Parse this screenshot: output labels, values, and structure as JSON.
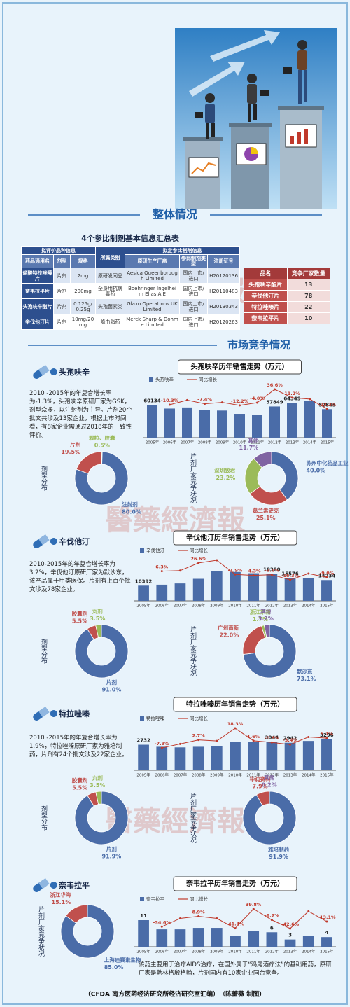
{
  "header": {
    "section1": "整体情况",
    "section2": "市场竞争情况"
  },
  "watermark": "醫藥經濟報",
  "table1": {
    "title": "4个参比制剂基本信息汇总表",
    "group_headers": [
      "拟评价品种信息",
      "拟定参比制剂信息"
    ],
    "columns": [
      "药品通用名",
      "剂型",
      "规格",
      "所属类别",
      "原研生产厂商",
      "参比制剂类型",
      "注册证号"
    ],
    "rows": [
      [
        "盐酸特拉唑嗪片",
        "片剂",
        "2mg",
        "原研发同品",
        "Aesica Queenborough Limited",
        "国内上市/进口",
        "H20120136"
      ],
      [
        "奈韦拉平片",
        "片剂",
        "200mg",
        "全身用抗病毒药",
        "Boehringer Ingelheim Ellas A.E",
        "国内上市/进口",
        "H20110483"
      ],
      [
        "头孢呋辛酯片",
        "片剂",
        "0.125g/0.25g",
        "头孢菌素类",
        "Glaxo Operations UK Limited",
        "国内上市/进口",
        "H20130343"
      ],
      [
        "辛伐他汀片",
        "片剂",
        "10mg/20mg",
        "降血脂药",
        "Merck Sharp & Dohme Limited",
        "国内上市/进口",
        "H20120263"
      ]
    ]
  },
  "table2": {
    "columns": [
      "品名",
      "竞争厂家数量"
    ],
    "rows": [
      [
        "头孢呋辛酯片",
        13
      ],
      [
        "辛伐他汀片",
        78
      ],
      [
        "特拉唑嗪片",
        22
      ],
      [
        "奈韦拉平片",
        10
      ]
    ]
  },
  "drugs": [
    {
      "name": "头孢呋辛",
      "description": "2010 -2015年的年复合增长率为-1.3%，头孢呋辛原研厂家为GSK，剂型众多，以注射剂为主导。片剂20个批文共涉及13家企业，根据上市时间看，有8家企业需通过2018年的一致性评价。"
    },
    {
      "name": "辛伐他汀",
      "description": "2010-2015年的年复合增长率为3.2%，辛伐他汀原研厂家为默沙东，该产品属于甲类医保。片剂有上百个批文涉及78家企业。"
    },
    {
      "name": "特拉唑嗪",
      "description": "2010 -2015年的年复合增长率为1.9%，特拉唑嗪原研厂家为雅培制药，片剂有24个批文涉及22家企业。"
    },
    {
      "name": "奈韦拉平",
      "description": "该药主要用于治疗AIDS治疗，在国外属于“鸡尾酒疗法”的基础用药，原研厂家是勃林格殷格翰，片剂国内有10家企业同台竞争。"
    }
  ],
  "chart_data": [
    {
      "type": "combo",
      "title": "头孢呋辛历年销售走势（万元）",
      "categories": [
        "2005年",
        "2006年",
        "2007年",
        "2008年",
        "2009年",
        "2010年",
        "2011年",
        "2012年",
        "2013年",
        "2014年",
        "2015年"
      ],
      "series": [
        {
          "name": "头孢呋辛",
          "color": "#4a6ca8",
          "values": [
            60134,
            53940,
            56000,
            51856,
            50245,
            44115,
            42350,
            57849,
            64349,
            68809,
            52845
          ],
          "value_labels": [
            "60134",
            null,
            null,
            null,
            null,
            null,
            null,
            "57849",
            "64349",
            null,
            "52845"
          ]
        },
        {
          "name": "同比增长",
          "color": "#c0392b",
          "axis": "y2",
          "values": [
            null,
            -10.3,
            3.8,
            -7.4,
            -3.1,
            -12.2,
            -4.0,
            36.6,
            11.2,
            6.9,
            -23.2
          ],
          "value_labels": [
            null,
            "-10.3%",
            null,
            "-7.4%",
            null,
            "-12.2%",
            "-4.0%",
            "36.6%",
            "11.2%",
            null,
            "-23.2%"
          ]
        }
      ]
    },
    {
      "type": "donut",
      "title": "剂型分布",
      "categories": [
        "颗粒、胶囊",
        "注射剂",
        "片剂"
      ],
      "values": [
        0.5,
        80.0,
        19.5
      ],
      "value_labels": [
        "0.5%",
        "80.0%",
        "19.5%"
      ],
      "colors": [
        "#9bbb59",
        "#4a6ca8",
        "#c0504d"
      ]
    },
    {
      "type": "donut",
      "title": "片剂厂家竞争状况",
      "categories": [
        "苏州中化药品工业",
        "葛兰素史克",
        "深圳致君",
        "其他"
      ],
      "values": [
        40.0,
        25.1,
        23.2,
        11.7
      ],
      "value_labels": [
        "40.0%",
        "25.1%",
        "23.2%",
        "11.7%"
      ],
      "colors": [
        "#4a6ca8",
        "#c0504d",
        "#9bbb59",
        "#8064a2"
      ]
    },
    {
      "type": "combo",
      "title": "辛伐他汀历年销售走势（万元）",
      "categories": [
        "2005年",
        "2006年",
        "2007年",
        "2008年",
        "2009年",
        "2010年",
        "2011年",
        "2012年",
        "2013年",
        "2014年",
        "2015年"
      ],
      "series": [
        {
          "name": "辛伐他汀",
          "color": "#4a6ca8",
          "values": [
            10392,
            11047,
            11900,
            15065,
            20100,
            19718,
            18870,
            18380,
            15576,
            15642,
            14234
          ],
          "value_labels": [
            "10392",
            null,
            null,
            null,
            null,
            null,
            null,
            "18380",
            "15576",
            null,
            "14234"
          ]
        },
        {
          "name": "同比增长",
          "color": "#c0392b",
          "axis": "y2",
          "values": [
            null,
            6.3,
            7.7,
            26.6,
            33.4,
            -1.9,
            -4.3,
            -2.6,
            -15.3,
            0.4,
            -9.0
          ],
          "value_labels": [
            null,
            "6.3%",
            null,
            "26.6%",
            null,
            "-1.9%",
            "-4.3%",
            "-2.6%",
            "-15.3%",
            null,
            "-9.0%"
          ]
        }
      ]
    },
    {
      "type": "donut",
      "title": "剂型分布",
      "categories": [
        "片剂",
        "胶囊剂",
        "丸剂"
      ],
      "values": [
        91.0,
        5.5,
        3.5
      ],
      "value_labels": [
        "91.0%",
        "5.5%",
        "3.5%"
      ],
      "colors": [
        "#4a6ca8",
        "#c0504d",
        "#9bbb59"
      ]
    },
    {
      "type": "donut",
      "title": "片剂厂家竞争状况",
      "categories": [
        "默沙东",
        "广州南新",
        "浙江京新",
        "其他"
      ],
      "values": [
        73.1,
        22.0,
        1.7,
        3.2
      ],
      "value_labels": [
        "73.1%",
        "22.0%",
        "1.7%",
        "3.2%"
      ],
      "colors": [
        "#4a6ca8",
        "#c0504d",
        "#9bbb59",
        "#8064a2"
      ]
    },
    {
      "type": "combo",
      "title": "特拉唑嗪历年销售走势（万元）",
      "categories": [
        "2005年",
        "2006年",
        "2007年",
        "2008年",
        "2009年",
        "2010年",
        "2011年",
        "2012年",
        "2013年",
        "2014年",
        "2015年"
      ],
      "series": [
        {
          "name": "特拉唑嗪",
          "color": "#4a6ca8",
          "values": [
            2732,
            2516,
            2450,
            2516,
            2548,
            3014,
            3062,
            3044,
            2942,
            3136,
            3296
          ],
          "value_labels": [
            "2732",
            null,
            null,
            null,
            null,
            null,
            null,
            "3044",
            "2942",
            null,
            "3296"
          ]
        },
        {
          "name": "同比增长",
          "color": "#c0392b",
          "axis": "y2",
          "values": [
            null,
            -7.9,
            -2.6,
            2.7,
            1.3,
            18.3,
            1.6,
            -0.6,
            -3.4,
            6.6,
            5.1
          ],
          "value_labels": [
            null,
            "-7.9%",
            null,
            "2.7%",
            null,
            "18.3%",
            "1.6%",
            "-0.6%",
            "-3.4%",
            null,
            "5.1%"
          ]
        }
      ]
    },
    {
      "type": "donut",
      "title": "剂型分布",
      "categories": [
        "片剂",
        "胶囊剂",
        "丸剂"
      ],
      "values": [
        91.9,
        5.5,
        3.5
      ],
      "value_labels": [
        "91.9%",
        "5.5%",
        "3.5%"
      ],
      "colors": [
        "#4a6ca8",
        "#c0504d",
        "#9bbb59"
      ]
    },
    {
      "type": "donut",
      "title": "片剂厂家竞争状况",
      "categories": [
        "雅培制药",
        "华润赛科",
        "其他"
      ],
      "values": [
        91.9,
        7.9,
        0.2
      ],
      "value_labels": [
        "91.9%",
        "7.9%",
        "0.2%"
      ],
      "colors": [
        "#4a6ca8",
        "#c0504d",
        "#8064a2"
      ]
    },
    {
      "type": "combo",
      "title": "奈韦拉平历年销售走势（万元）",
      "categories": [
        "2005年",
        "2006年",
        "2007年",
        "2008年",
        "2009年",
        "2010年",
        "2011年",
        "2012年",
        "2013年",
        "2014年",
        "2015年"
      ],
      "series": [
        {
          "name": "奈韦拉平",
          "color": "#4a6ca8",
          "values": [
            11,
            7.2,
            7.2,
            7.8,
            7.8,
            4.6,
            6.4,
            6,
            3,
            4.6,
            4
          ],
          "value_labels": [
            "11",
            null,
            null,
            null,
            null,
            null,
            null,
            "6",
            "3",
            null,
            "4"
          ]
        },
        {
          "name": "同比增长",
          "color": "#c0392b",
          "axis": "y2",
          "values": [
            null,
            -34.6,
            0,
            8.9,
            0,
            -41.4,
            39.8,
            -6.2,
            -42.6,
            30,
            -13.1
          ],
          "value_labels": [
            null,
            "-34.6%",
            null,
            "8.9%",
            null,
            "-41.4%",
            "39.8%",
            "-6.2%",
            "-42.6%",
            null,
            "-13.1%"
          ]
        }
      ]
    },
    {
      "type": "donut",
      "title": "片剂厂家竞争状况",
      "categories": [
        "上海迪赛诺生物",
        "浙江华海"
      ],
      "values": [
        85.0,
        15.1
      ],
      "value_labels": [
        "85.0%",
        "15.1%"
      ],
      "colors": [
        "#4a6ca8",
        "#c0504d"
      ]
    }
  ],
  "footer": "（CFDA 南方医药经济研究所经济研究室汇编）　（陈蕾薇 制图）"
}
